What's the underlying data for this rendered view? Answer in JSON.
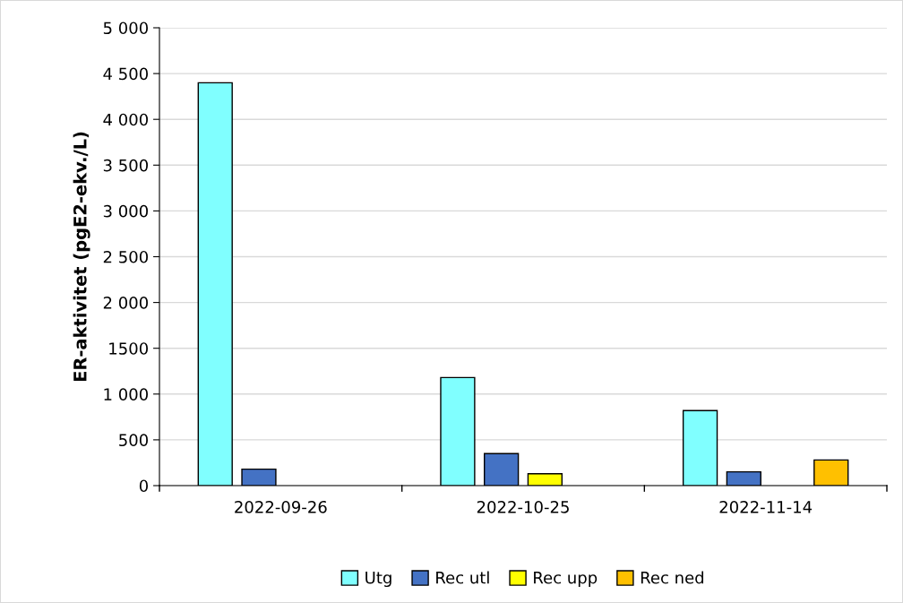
{
  "chart_data": {
    "type": "bar",
    "ylabel": "ER-aktivitet (pgE2-ekv./L)",
    "categories": [
      "2022-09-26",
      "2022-10-25",
      "2022-11-14"
    ],
    "series": [
      {
        "name": "Utg",
        "color": "#80ffff",
        "values": [
          4400,
          1180,
          820
        ]
      },
      {
        "name": "Rec utl",
        "color": "#4472c4",
        "values": [
          180,
          350,
          150
        ]
      },
      {
        "name": "Rec upp",
        "color": "#ffff00",
        "values": [
          null,
          130,
          null
        ]
      },
      {
        "name": "Rec ned",
        "color": "#ffc000",
        "values": [
          null,
          null,
          280
        ]
      }
    ],
    "ylim": [
      0,
      5000
    ],
    "yticks": [
      {
        "value": 0,
        "label": "0"
      },
      {
        "value": 500,
        "label": "500"
      },
      {
        "value": 1000,
        "label": "1 000"
      },
      {
        "value": 1500,
        "label": "1500"
      },
      {
        "value": 2000,
        "label": "2 000"
      },
      {
        "value": 2500,
        "label": "2 500"
      },
      {
        "value": 3000,
        "label": "3 000"
      },
      {
        "value": 3500,
        "label": "3 500"
      },
      {
        "value": 4000,
        "label": "4 000"
      },
      {
        "value": 4500,
        "label": "4 500"
      },
      {
        "value": 5000,
        "label": "5 000"
      }
    ],
    "grid": "y",
    "legend": "bottom"
  }
}
